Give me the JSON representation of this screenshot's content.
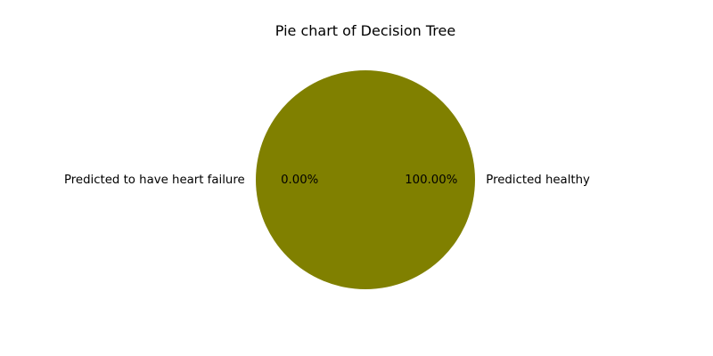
{
  "chart_data": {
    "type": "pie",
    "title": "Pie chart of Decision Tree",
    "labels": [
      "Predicted healthy",
      "Predicted to have heart failure"
    ],
    "values": [
      100.0,
      0.0
    ],
    "percent_labels": [
      "100.00%",
      "0.00%"
    ],
    "colors": [
      "#808000",
      "#808000"
    ],
    "legend": "none"
  }
}
